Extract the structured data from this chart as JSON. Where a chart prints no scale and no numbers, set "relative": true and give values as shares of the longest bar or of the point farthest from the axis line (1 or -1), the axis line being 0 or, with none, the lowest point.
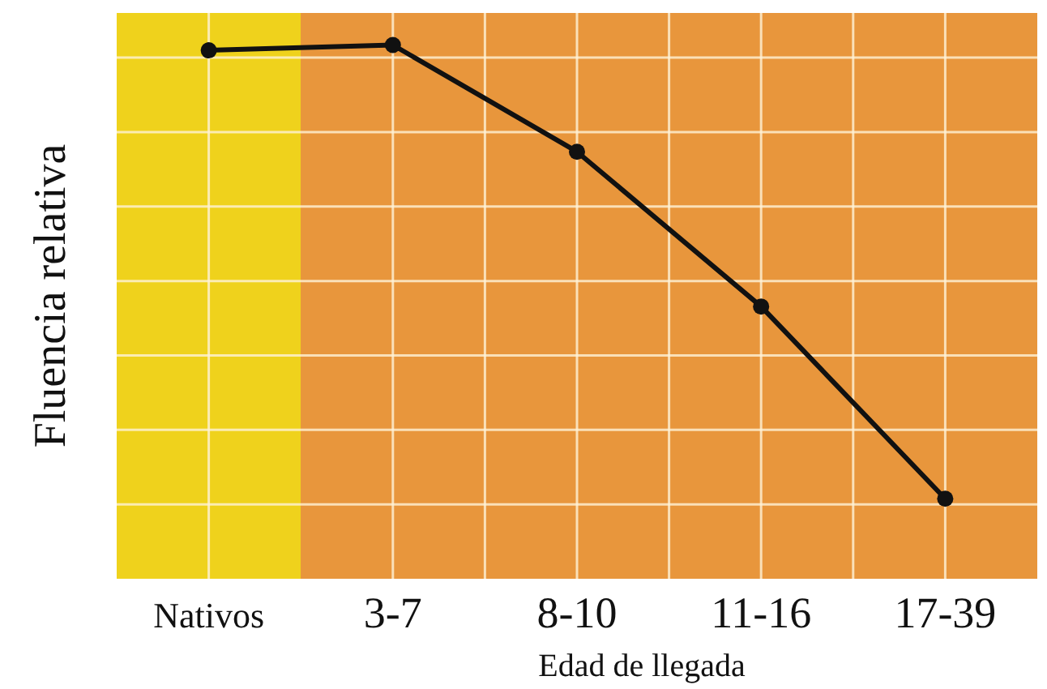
{
  "chart_data": {
    "type": "line",
    "relative": true,
    "xlabel": "Edad de llegada",
    "ylabel": "Fluencia relativa",
    "categories": [
      "Nativos",
      "3-7",
      "8-10",
      "11-16",
      "17-39"
    ],
    "series": [
      {
        "color": "#111111",
        "values": [
          0.99,
          1,
          0.8,
          0.51,
          0.15
        ]
      }
    ],
    "marker": "circle",
    "line_style": "solid",
    "grid": true,
    "bands": [
      {
        "axis": "x",
        "from": "Nativos",
        "to": "Nativos",
        "color": "#efd21c"
      },
      {
        "axis": "x",
        "from": "3-7",
        "to": "17-39",
        "color": "#e8963c"
      }
    ]
  }
}
